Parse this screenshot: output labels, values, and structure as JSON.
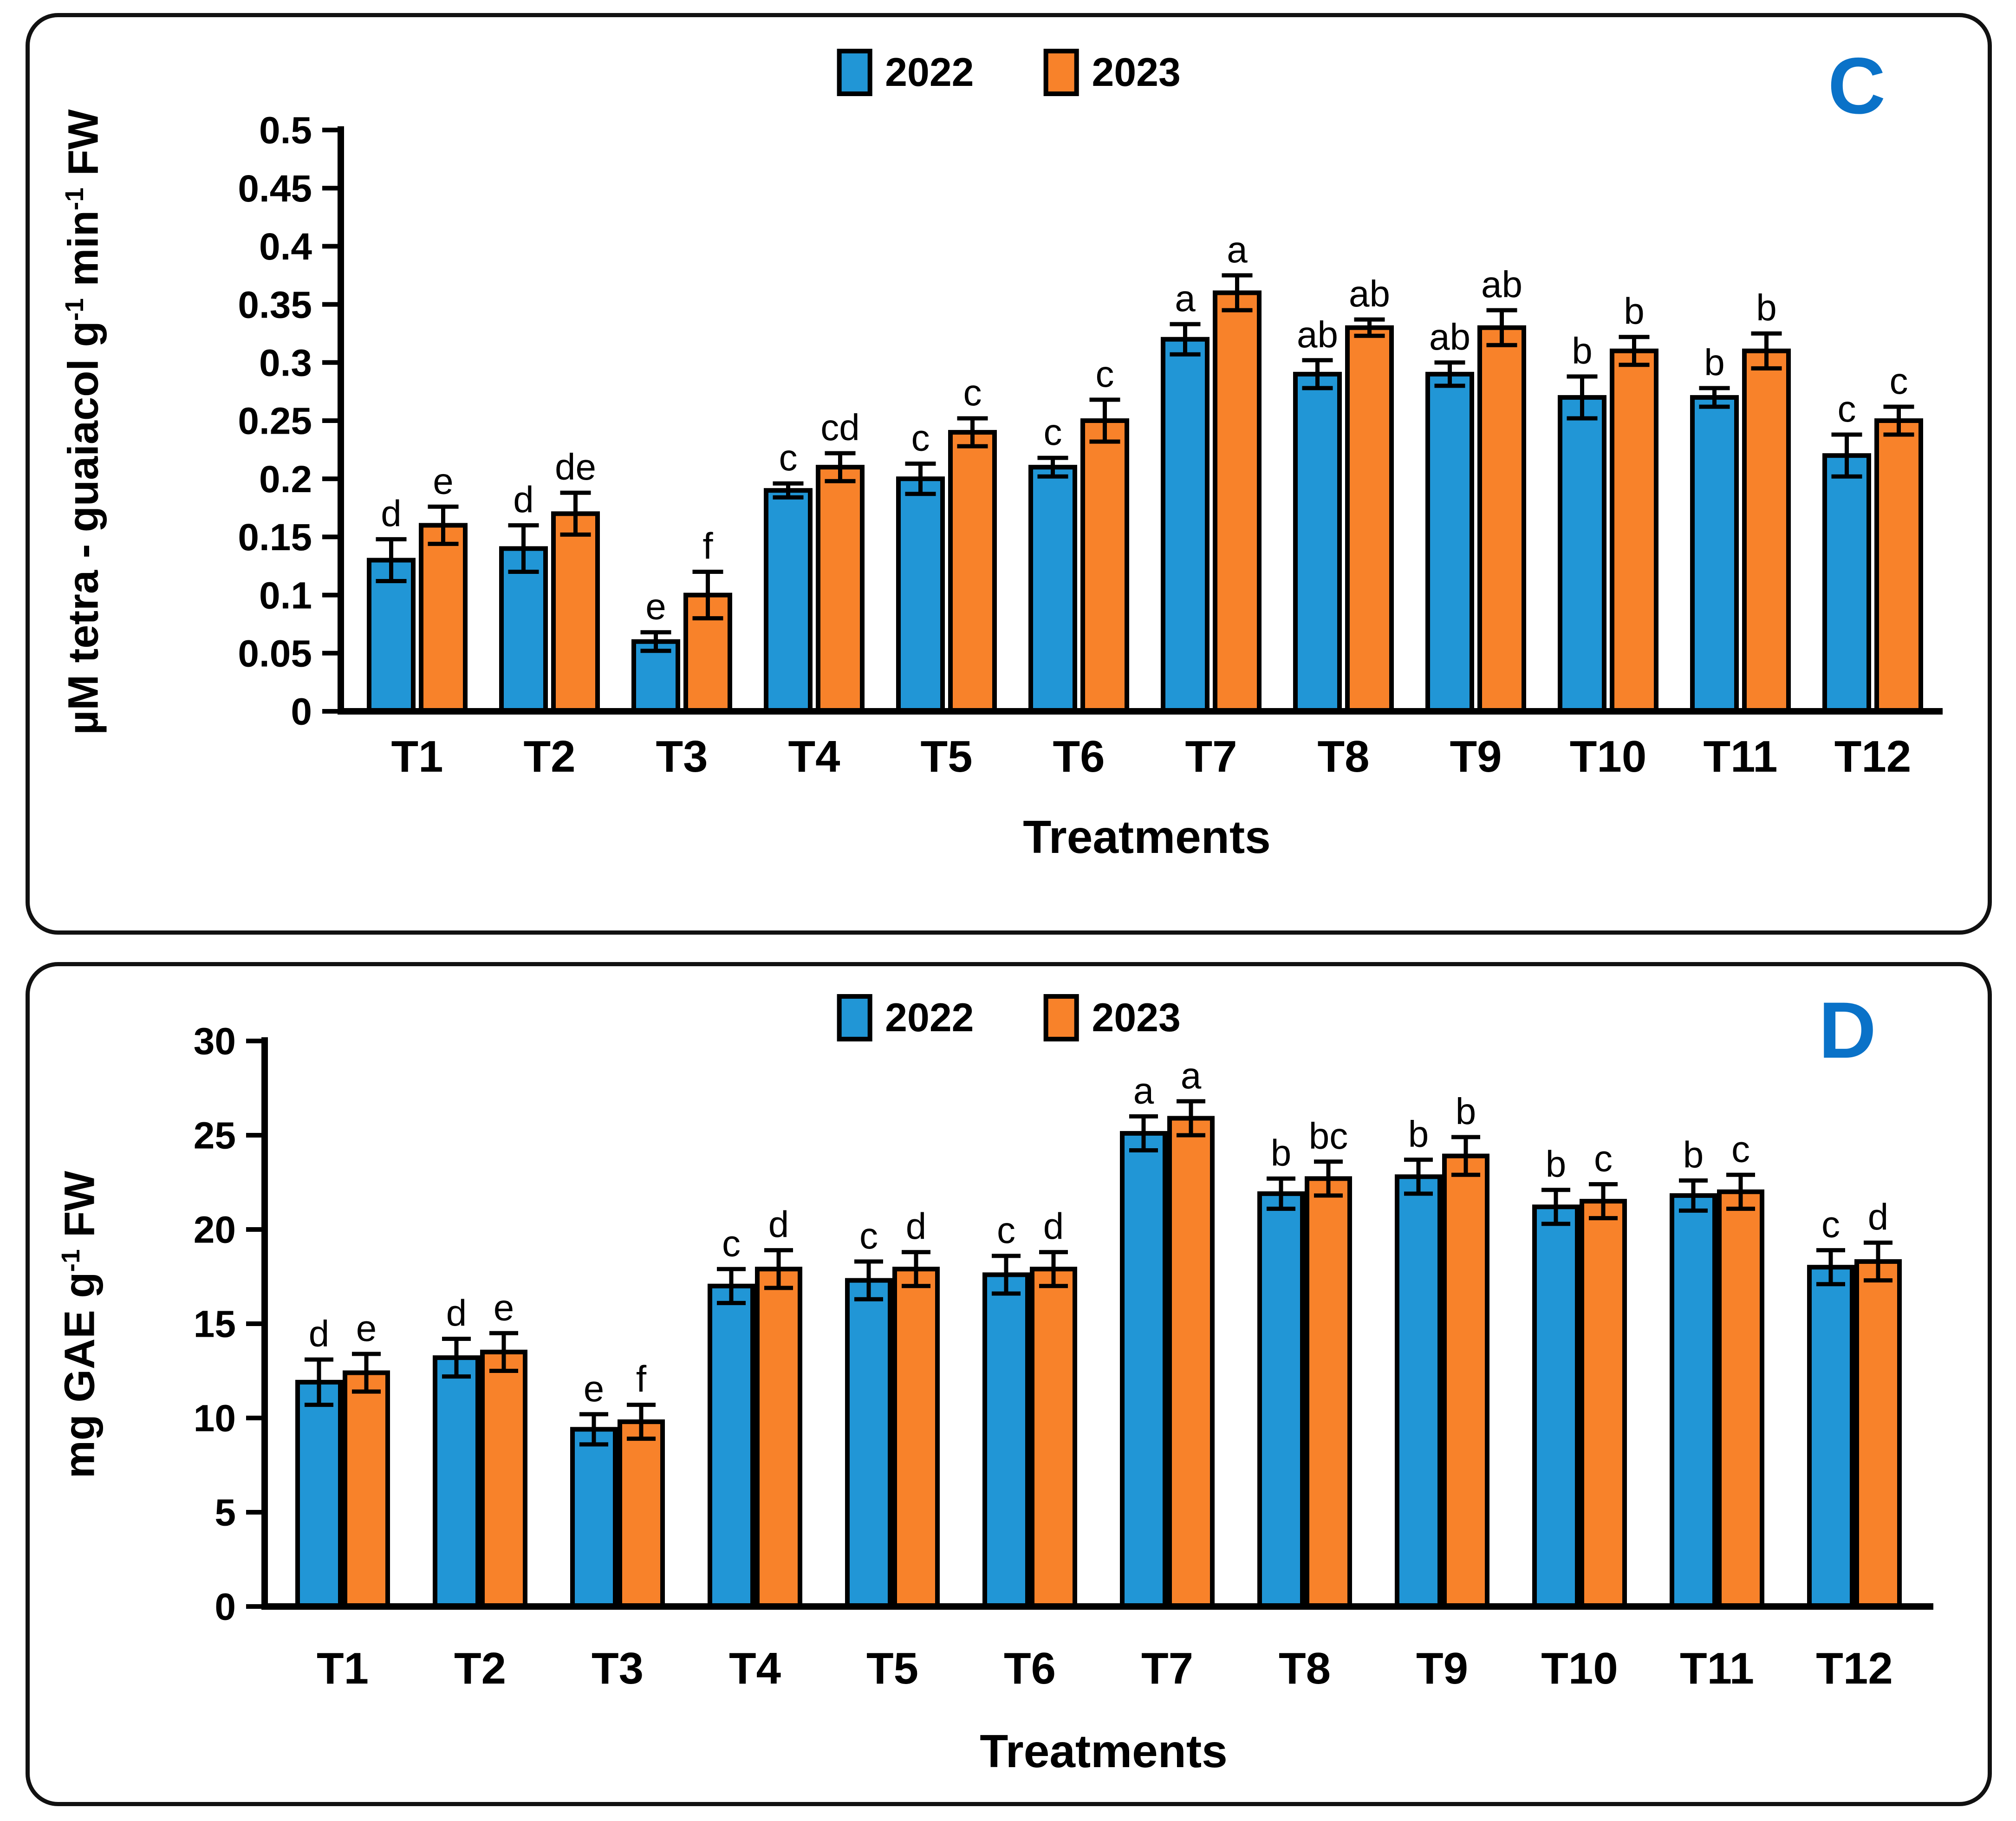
{
  "panels": [
    {
      "panel_label": "C",
      "panel_label_color": "#0a72c8"
    },
    {
      "panel_label": "D",
      "panel_label_color": "#0a72c8"
    }
  ],
  "chart_data": [
    {
      "id": "C",
      "type": "bar",
      "title": "",
      "categories": [
        "T1",
        "T2",
        "T3",
        "T4",
        "T5",
        "T6",
        "T7",
        "T8",
        "T9",
        "T10",
        "T11",
        "T12"
      ],
      "xlabel": "Treatments",
      "ylabel": "µM tetra - guaiacol g⁻¹ min⁻¹ FW",
      "ylabel_parts": [
        {
          "t": "µM tetra - guaiacol g"
        },
        {
          "t": "-1",
          "sup": true
        },
        {
          "t": " min"
        },
        {
          "t": "-1",
          "sup": true
        },
        {
          "t": " FW"
        }
      ],
      "ylim": [
        0,
        0.5
      ],
      "ytick_step": 0.05,
      "ytick_labels": [
        "0",
        "0.05",
        "0.1",
        "0.15",
        "0.2",
        "0.25",
        "0.3",
        "0.35",
        "0.4",
        "0.45",
        "0.5"
      ],
      "grid": false,
      "legend_position": "top-center",
      "series": [
        {
          "name": "2022",
          "color": "#2196d6",
          "values": [
            0.13,
            0.14,
            0.06,
            0.19,
            0.2,
            0.21,
            0.32,
            0.29,
            0.29,
            0.27,
            0.27,
            0.22
          ],
          "errors": [
            0.018,
            0.02,
            0.008,
            0.006,
            0.013,
            0.008,
            0.013,
            0.012,
            0.01,
            0.018,
            0.008,
            0.018
          ],
          "letters": [
            "d",
            "d",
            "e",
            "c",
            "c",
            "c",
            "a",
            "ab",
            "ab",
            "b",
            "b",
            "c"
          ]
        },
        {
          "name": "2023",
          "color": "#f8822a",
          "values": [
            0.16,
            0.17,
            0.1,
            0.21,
            0.24,
            0.25,
            0.36,
            0.33,
            0.33,
            0.31,
            0.31,
            0.25
          ],
          "errors": [
            0.016,
            0.018,
            0.02,
            0.012,
            0.012,
            0.018,
            0.015,
            0.007,
            0.015,
            0.012,
            0.015,
            0.012
          ],
          "letters": [
            "e",
            "de",
            "f",
            "cd",
            "c",
            "c",
            "a",
            "ab",
            "ab",
            "b",
            "b",
            "c"
          ]
        }
      ]
    },
    {
      "id": "D",
      "type": "bar",
      "title": "",
      "categories": [
        "T1",
        "T2",
        "T3",
        "T4",
        "T5",
        "T6",
        "T7",
        "T8",
        "T9",
        "T10",
        "T11",
        "T12"
      ],
      "xlabel": "Treatments",
      "ylabel": "mg GAE g⁻¹ FW",
      "ylabel_parts": [
        {
          "t": "mg GAE g"
        },
        {
          "t": "-1",
          "sup": true
        },
        {
          "t": " FW"
        }
      ],
      "ylim": [
        0,
        30
      ],
      "ytick_step": 5,
      "ytick_labels": [
        "0",
        "5",
        "10",
        "15",
        "20",
        "25",
        "30"
      ],
      "grid": false,
      "legend_position": "top-center",
      "series": [
        {
          "name": "2022",
          "color": "#2196d6",
          "values": [
            11.9,
            13.2,
            9.4,
            17.0,
            17.3,
            17.6,
            25.1,
            21.9,
            22.8,
            21.2,
            21.8,
            18.0
          ],
          "errors": [
            1.2,
            1.0,
            0.8,
            0.9,
            1.0,
            1.0,
            0.9,
            0.8,
            0.9,
            0.9,
            0.8,
            0.9
          ],
          "letters": [
            "d",
            "d",
            "e",
            "c",
            "c",
            "c",
            "a",
            "b",
            "b",
            "b",
            "b",
            "c"
          ]
        },
        {
          "name": "2023",
          "color": "#f8822a",
          "values": [
            12.4,
            13.5,
            9.8,
            17.9,
            17.9,
            17.9,
            25.9,
            22.7,
            23.9,
            21.5,
            22.0,
            18.3
          ],
          "errors": [
            1.0,
            1.0,
            0.9,
            1.0,
            0.9,
            0.9,
            0.9,
            0.9,
            1.0,
            0.9,
            0.9,
            1.0
          ],
          "letters": [
            "e",
            "e",
            "f",
            "d",
            "d",
            "d",
            "a",
            "bc",
            "b",
            "c",
            "c",
            "d"
          ]
        }
      ]
    }
  ]
}
